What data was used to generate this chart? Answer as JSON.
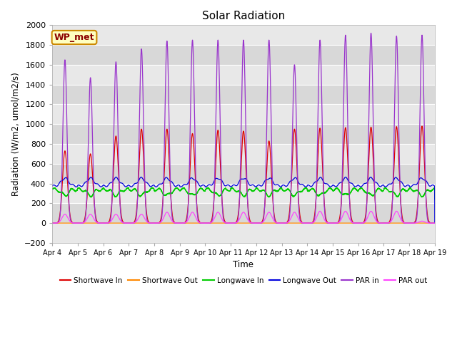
{
  "title": "Solar Radiation",
  "ylabel": "Radiation (W/m2, umol/m2/s)",
  "xlabel": "Time",
  "ylim": [
    -200,
    2000
  ],
  "bg_color": "#ffffff",
  "plot_bg_color": "#d8d8d8",
  "x_tick_labels": [
    "Apr 4",
    "Apr 5",
    "Apr 6",
    "Apr 7",
    "Apr 8",
    "Apr 9",
    "Apr 10",
    "Apr 11",
    "Apr 12",
    "Apr 13",
    "Apr 14",
    "Apr 15",
    "Apr 16",
    "Apr 17",
    "Apr 18",
    "Apr 19"
  ],
  "annotation_text": "WP_met",
  "annotation_bg": "#ffffc0",
  "annotation_border": "#cc8800",
  "series_colors": {
    "sw_in": "#dd0000",
    "sw_out": "#ff8800",
    "lw_in": "#00cc00",
    "lw_out": "#0000dd",
    "par_in": "#9933cc",
    "par_out": "#ff44ff"
  },
  "legend_labels": [
    "Shortwave In",
    "Shortwave Out",
    "Longwave In",
    "Longwave Out",
    "PAR in",
    "PAR out"
  ],
  "sw_peaks": [
    730,
    700,
    880,
    950,
    950,
    905,
    940,
    930,
    830,
    950,
    960,
    965,
    970,
    975,
    980
  ],
  "par_in_peaks": [
    1650,
    1470,
    1630,
    1760,
    1840,
    1850,
    1850,
    1850,
    1850,
    1600,
    1850,
    1900,
    1920,
    1890,
    1900
  ],
  "par_out_peaks": [
    90,
    90,
    90,
    90,
    110,
    110,
    110,
    110,
    110,
    110,
    120,
    120,
    120,
    120,
    20
  ],
  "days": 15,
  "pts_per_day": 288
}
